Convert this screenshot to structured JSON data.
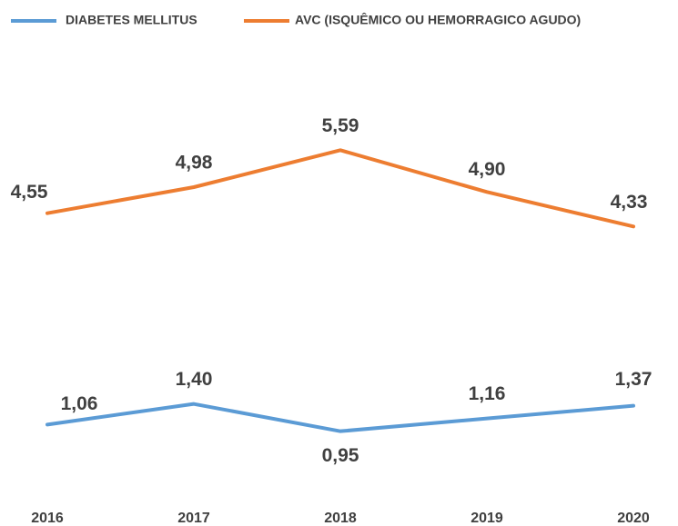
{
  "chart_data": {
    "type": "line",
    "categories": [
      "2016",
      "2017",
      "2018",
      "2019",
      "2020"
    ],
    "series": [
      {
        "name": "DIABETES MELLITUS",
        "color": "#5b9bd5",
        "values": [
          1.06,
          1.4,
          0.95,
          1.16,
          1.37
        ],
        "value_labels": [
          "1,06",
          "1,40",
          "0,95",
          "1,16",
          "1,37"
        ]
      },
      {
        "name": "AVC (ISQUÊMICO OU HEMORRAGICO AGUDO)",
        "color": "#ed7d31",
        "values": [
          4.55,
          4.98,
          5.59,
          4.9,
          4.33
        ],
        "value_labels": [
          "4,55",
          "4,98",
          "5,59",
          "4,90",
          "4,33"
        ]
      }
    ],
    "ylim": [
      0,
      6
    ],
    "grid": false,
    "legend": "top"
  }
}
